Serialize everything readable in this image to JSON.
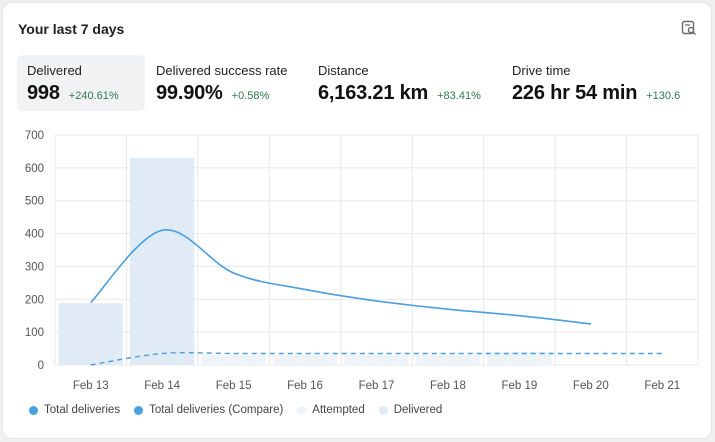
{
  "card": {
    "title": "Your last 7 days"
  },
  "stats": [
    {
      "label": "Delivered",
      "value": "998",
      "delta": "+240.61%",
      "active": true
    },
    {
      "label": "Delivered success rate",
      "value": "99.90%",
      "delta": "+0.58%",
      "active": false
    },
    {
      "label": "Distance",
      "value": "6,163.21 km",
      "delta": "+83.41%",
      "active": false
    },
    {
      "label": "Drive time",
      "value": "226 hr 54 min",
      "delta": "+130.6",
      "active": false
    }
  ],
  "colors": {
    "accent_line": "#4a9fe0",
    "bar_delivered": "#e1ebf5",
    "bar_attempted": "#eef3f8",
    "grid": "#e8e8e8",
    "delta_positive": "#2f7a4f"
  },
  "icons": {
    "corner": "report-search-icon"
  },
  "chart_data": {
    "type": "bar",
    "categories": [
      "Feb 13",
      "Feb 14",
      "Feb 15",
      "Feb 16",
      "Feb 17",
      "Feb 18",
      "Feb 19",
      "Feb 20",
      "Feb 21"
    ],
    "ylim": [
      0,
      700
    ],
    "yticks": [
      0,
      100,
      200,
      300,
      400,
      500,
      600,
      700
    ],
    "grid": true,
    "legend_position": "bottom-left",
    "series": [
      {
        "name": "Total deliveries",
        "kind": "line",
        "values": [
          190,
          410,
          280,
          230,
          195,
          170,
          150,
          125,
          null
        ]
      },
      {
        "name": "Total deliveries (Compare)",
        "kind": "dashed-line",
        "values": [
          0,
          35,
          35,
          35,
          35,
          35,
          35,
          35,
          35
        ]
      },
      {
        "name": "Attempted",
        "kind": "bar",
        "values": [
          0,
          0,
          30,
          30,
          30,
          30,
          40,
          0,
          0
        ]
      },
      {
        "name": "Delivered",
        "kind": "bar",
        "values": [
          188,
          630,
          0,
          0,
          0,
          0,
          0,
          0,
          0
        ]
      }
    ]
  }
}
